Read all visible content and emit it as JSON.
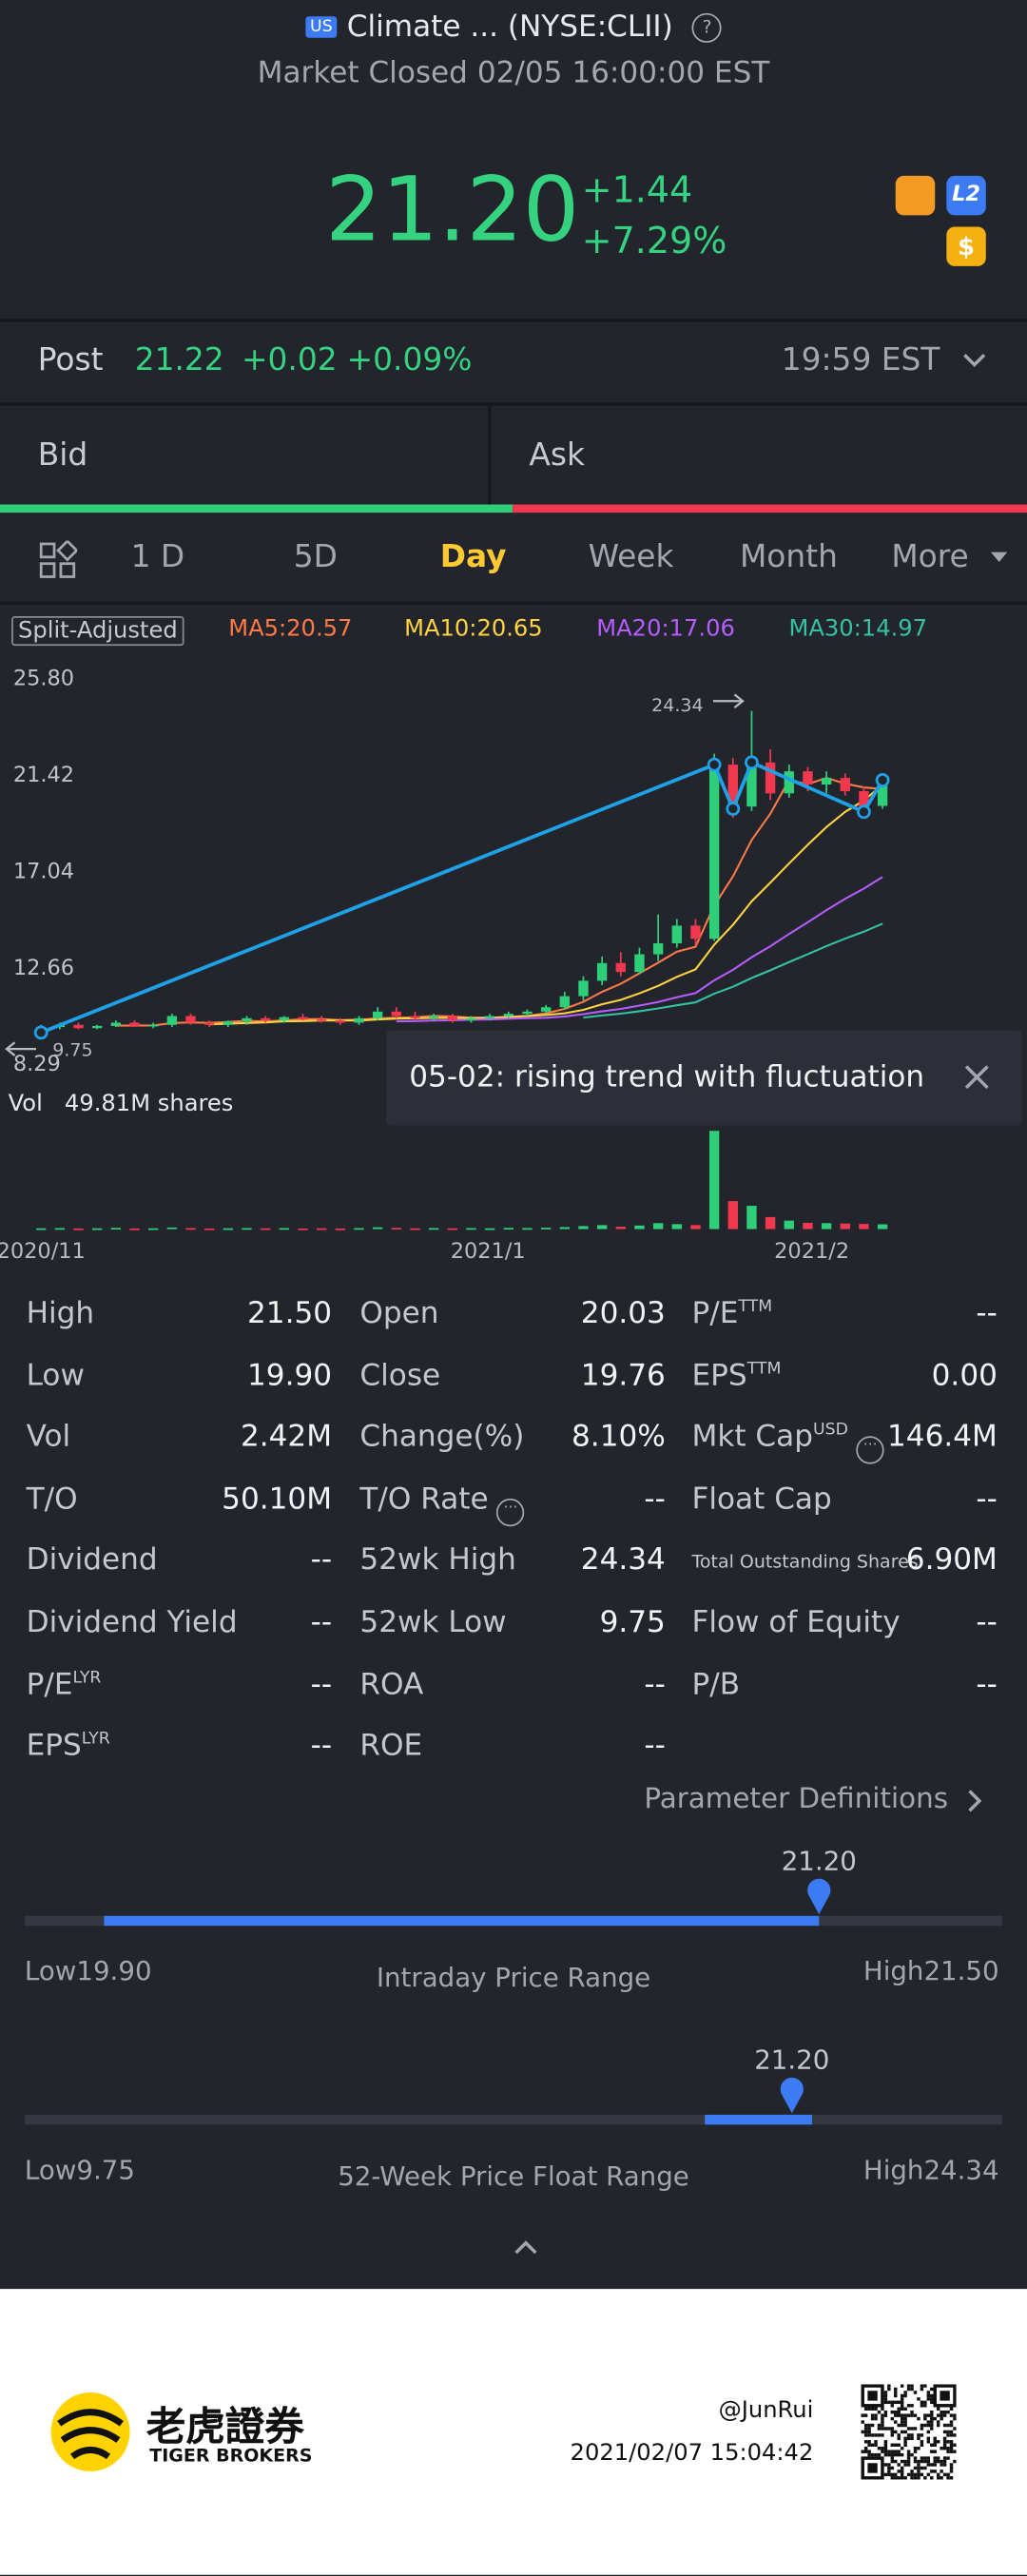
{
  "header": {
    "market_badge": "US",
    "title": "Climate ... (NYSE:CLII)",
    "status": "Market Closed 02/05 16:00:00 EST"
  },
  "quote": {
    "price": "21.20",
    "change": "+1.44",
    "change_pct": "+7.29%",
    "badges": [
      "L2",
      "$"
    ]
  },
  "post": {
    "label": "Post",
    "price": "21.22",
    "change": "+0.02",
    "change_pct": "+0.09%",
    "time": "19:59 EST"
  },
  "order_book": {
    "bid": "Bid",
    "ask": "Ask"
  },
  "tabs": [
    "1 D",
    "5D",
    "Day",
    "Week",
    "Month",
    "More"
  ],
  "active_tab": "Day",
  "chart": {
    "adjust_label": "Split-Adjusted",
    "ma": [
      {
        "label": "MA5:20.57",
        "period": 5,
        "color": "#ff7a45"
      },
      {
        "label": "MA10:20.65",
        "period": 10,
        "color": "#ffd23f"
      },
      {
        "label": "MA20:17.06",
        "period": 20,
        "color": "#b65cff"
      },
      {
        "label": "MA30:14.97",
        "period": 30,
        "color": "#35c2a0"
      }
    ],
    "ylim": [
      8.14,
      26.4
    ],
    "yticks": [
      {
        "value": 25.8,
        "label": "25.80"
      },
      {
        "value": 21.42,
        "label": "21.42"
      },
      {
        "value": 17.04,
        "label": "17.04"
      },
      {
        "value": 12.66,
        "label": "12.66"
      },
      {
        "value": 8.29,
        "label": "8.29"
      }
    ],
    "high_marker": {
      "value": 24.34,
      "label": "24.34"
    },
    "low_marker": {
      "value": 9.75,
      "label": "9.75"
    },
    "up_color": "#2fcf7a",
    "down_color": "#f2384e",
    "candles": [
      [
        9.9,
        10.1,
        9.75,
        10.0
      ],
      [
        10.0,
        10.2,
        9.9,
        10.1
      ],
      [
        10.1,
        10.2,
        9.9,
        9.95
      ],
      [
        9.95,
        10.1,
        9.9,
        10.05
      ],
      [
        10.05,
        10.3,
        10.0,
        10.2
      ],
      [
        10.2,
        10.3,
        10.0,
        10.05
      ],
      [
        10.05,
        10.2,
        9.95,
        10.1
      ],
      [
        10.1,
        10.6,
        10.0,
        10.5
      ],
      [
        10.5,
        10.6,
        10.1,
        10.2
      ],
      [
        10.2,
        10.3,
        10.0,
        10.1
      ],
      [
        10.1,
        10.3,
        10.0,
        10.25
      ],
      [
        10.25,
        10.5,
        10.1,
        10.4
      ],
      [
        10.4,
        10.5,
        10.2,
        10.3
      ],
      [
        10.3,
        10.5,
        10.2,
        10.45
      ],
      [
        10.45,
        10.6,
        10.3,
        10.35
      ],
      [
        10.35,
        10.5,
        10.2,
        10.3
      ],
      [
        10.3,
        10.4,
        10.1,
        10.2
      ],
      [
        10.2,
        10.5,
        10.1,
        10.4
      ],
      [
        10.4,
        10.9,
        10.3,
        10.7
      ],
      [
        10.7,
        10.9,
        10.4,
        10.5
      ],
      [
        10.5,
        10.7,
        10.3,
        10.4
      ],
      [
        10.4,
        10.6,
        10.3,
        10.5
      ],
      [
        10.5,
        10.6,
        10.2,
        10.3
      ],
      [
        10.3,
        10.5,
        10.2,
        10.4
      ],
      [
        10.4,
        10.6,
        10.3,
        10.5
      ],
      [
        10.5,
        10.7,
        10.4,
        10.6
      ],
      [
        10.6,
        10.8,
        10.5,
        10.7
      ],
      [
        10.7,
        11.0,
        10.6,
        10.9
      ],
      [
        10.9,
        11.6,
        10.8,
        11.4
      ],
      [
        11.4,
        12.3,
        11.2,
        12.1
      ],
      [
        12.1,
        13.2,
        11.9,
        12.9
      ],
      [
        12.9,
        13.4,
        12.3,
        12.5
      ],
      [
        12.5,
        13.6,
        12.4,
        13.3
      ],
      [
        13.3,
        15.1,
        13.0,
        13.8
      ],
      [
        13.8,
        14.9,
        13.6,
        14.6
      ],
      [
        14.6,
        14.9,
        13.7,
        14.0
      ],
      [
        14.0,
        22.4,
        13.9,
        21.9
      ],
      [
        21.9,
        22.2,
        19.5,
        19.9
      ],
      [
        20.0,
        24.34,
        19.8,
        22.0
      ],
      [
        22.0,
        22.6,
        20.3,
        20.6
      ],
      [
        20.6,
        21.9,
        20.4,
        21.6
      ],
      [
        21.6,
        21.8,
        20.7,
        21.0
      ],
      [
        21.0,
        21.6,
        20.6,
        21.3
      ],
      [
        21.3,
        21.5,
        20.5,
        20.7
      ],
      [
        20.7,
        20.9,
        19.7,
        19.76
      ],
      [
        20.03,
        21.5,
        19.9,
        21.2
      ]
    ],
    "trend_line": {
      "color": "#1ea1e6",
      "points": [
        [
          0,
          9.75
        ],
        [
          36,
          21.9
        ],
        [
          37,
          19.9
        ],
        [
          38,
          22.0
        ],
        [
          44,
          19.76
        ],
        [
          45,
          21.2
        ]
      ]
    },
    "annotation": "05-02: rising trend with fluctuation",
    "volume": {
      "label": "Vol",
      "value_label": "49.81M shares",
      "ylim": [
        0,
        50
      ],
      "values": [
        0.4,
        0.5,
        0.3,
        0.4,
        0.6,
        0.3,
        0.4,
        0.8,
        0.5,
        0.3,
        0.4,
        0.5,
        0.4,
        0.5,
        0.3,
        0.4,
        0.3,
        0.5,
        0.9,
        0.6,
        0.4,
        0.5,
        0.4,
        0.5,
        0.4,
        0.6,
        0.5,
        0.7,
        1.0,
        1.5,
        2.0,
        1.2,
        1.8,
        3.0,
        2.5,
        2.0,
        49.81,
        14.2,
        11.8,
        6.1,
        4.3,
        3.2,
        3.0,
        2.8,
        2.6,
        2.42
      ]
    },
    "dates": [
      "2020/11",
      "2021/1",
      "2021/2"
    ]
  },
  "stats": {
    "rows": [
      [
        {
          "label": "High",
          "value": "21.50"
        },
        {
          "label": "Open",
          "value": "20.03"
        },
        {
          "label": "P/E",
          "sup": "TTM",
          "value": "--"
        }
      ],
      [
        {
          "label": "Low",
          "value": "19.90"
        },
        {
          "label": "Close",
          "value": "19.76"
        },
        {
          "label": "EPS",
          "sup": "TTM",
          "value": "0.00"
        }
      ],
      [
        {
          "label": "Vol",
          "value": "2.42M"
        },
        {
          "label": "Change(%)",
          "value": "8.10%"
        },
        {
          "label": "Mkt Cap",
          "sup": "USD",
          "info": true,
          "value": "146.4M"
        }
      ],
      [
        {
          "label": "T/O",
          "value": "50.10M"
        },
        {
          "label": "T/O Rate",
          "info": true,
          "value": "--"
        },
        {
          "label": "Float Cap",
          "value": "--"
        }
      ],
      [
        {
          "label": "Dividend",
          "value": "--"
        },
        {
          "label": "52wk High",
          "value": "24.34"
        },
        {
          "label": "Total Outstanding Shares",
          "small": true,
          "value": "6.90M"
        }
      ],
      [
        {
          "label": "Dividend Yield",
          "value": "--"
        },
        {
          "label": "52wk Low",
          "value": "9.75"
        },
        {
          "label": "Flow of Equity",
          "value": "--"
        }
      ],
      [
        {
          "label": "P/E",
          "sup": "LYR",
          "value": "--"
        },
        {
          "label": "ROA",
          "value": "--"
        },
        {
          "label": "P/B",
          "value": "--"
        }
      ],
      [
        {
          "label": "EPS",
          "sup": "LYR",
          "value": "--"
        },
        {
          "label": "ROE",
          "value": "--"
        }
      ]
    ]
  },
  "definitions": "Parameter Definitions",
  "ranges": [
    {
      "title": "Intraday Price Range",
      "low_prefix": "Low",
      "high_prefix": "High",
      "low": {
        "value": 19.9,
        "label": "19.90"
      },
      "high": {
        "value": 21.5,
        "label": "21.50"
      },
      "current": {
        "value": 21.2,
        "label": "21.20"
      },
      "fill": [
        20.03,
        21.2
      ]
    },
    {
      "title": "52-Week Price Float Range",
      "low_prefix": "Low",
      "high_prefix": "High",
      "low": {
        "value": 9.75,
        "label": "9.75"
      },
      "high": {
        "value": 24.34,
        "label": "24.34"
      },
      "current": {
        "value": 21.2,
        "label": "21.20"
      },
      "fill": [
        19.9,
        21.5
      ]
    }
  ],
  "footer": {
    "brand_cn": "老虎證券",
    "brand_en": "TIGER BROKERS",
    "user": "@JunRui",
    "timestamp": "2021/02/07 15:04:42"
  }
}
